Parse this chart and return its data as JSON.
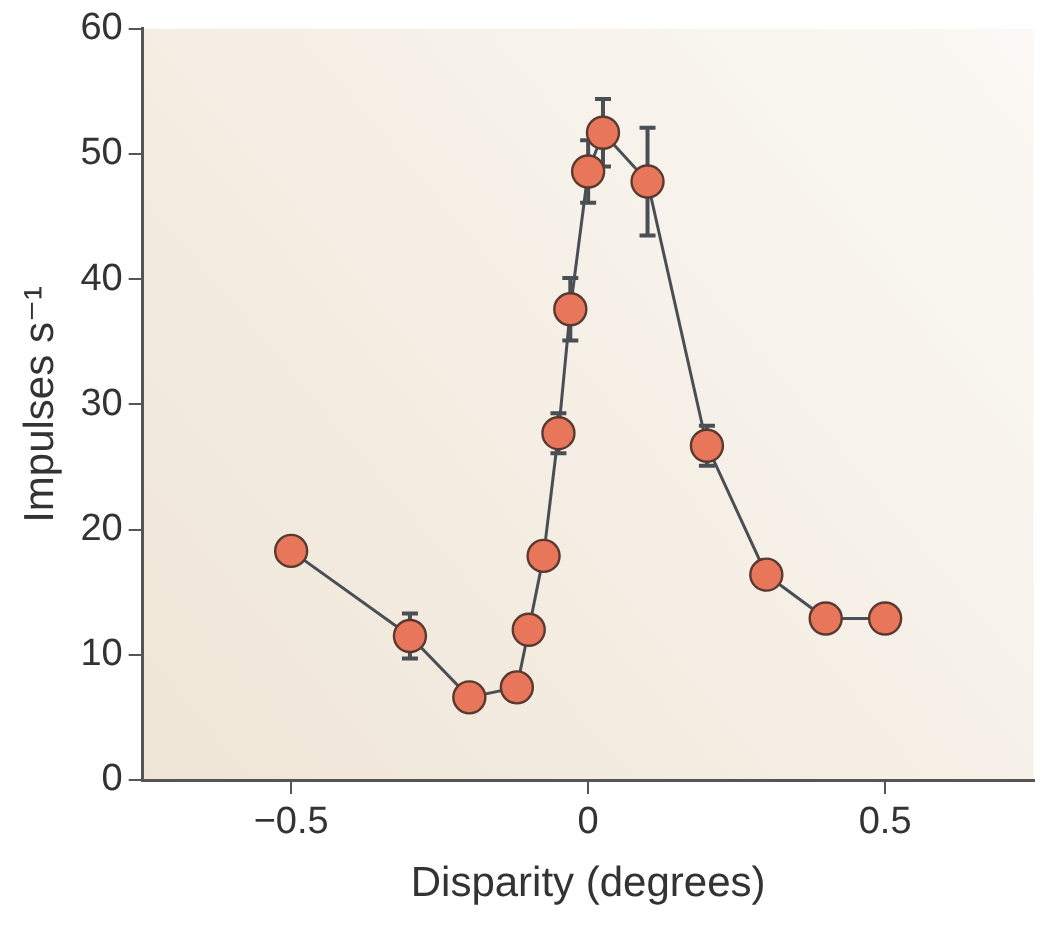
{
  "chart_data": {
    "type": "line",
    "xlabel": "Disparity (degrees)",
    "ylabel": "Impulses s⁻¹",
    "xlim": [
      -0.75,
      0.75
    ],
    "xticks": [
      {
        "value": -0.5,
        "label": "−0.5"
      },
      0,
      0.5
    ],
    "ylim": [
      0,
      60
    ],
    "yticks": [
      0,
      10,
      20,
      30,
      40,
      50,
      60
    ],
    "grid": false,
    "legend": false,
    "marker": "circle",
    "line_style": "solid",
    "series": [
      {
        "color": "#e8765a",
        "x": [
          -0.5,
          -0.3,
          -0.2,
          -0.12,
          -0.1,
          -0.075,
          -0.05,
          -0.03,
          0,
          0.025,
          0.1,
          0.2,
          0.3,
          0.4,
          0.5
        ],
        "values": [
          18.3,
          11.5,
          6.6,
          7.4,
          12,
          17.9,
          27.7,
          37.6,
          48.6,
          51.7,
          47.8,
          26.7,
          16.4,
          12.9,
          12.9
        ],
        "errors": [
          null,
          1.8,
          null,
          null,
          null,
          null,
          1.6,
          2.5,
          2.5,
          2.7,
          4.3,
          1.6,
          null,
          null,
          null
        ]
      }
    ]
  }
}
